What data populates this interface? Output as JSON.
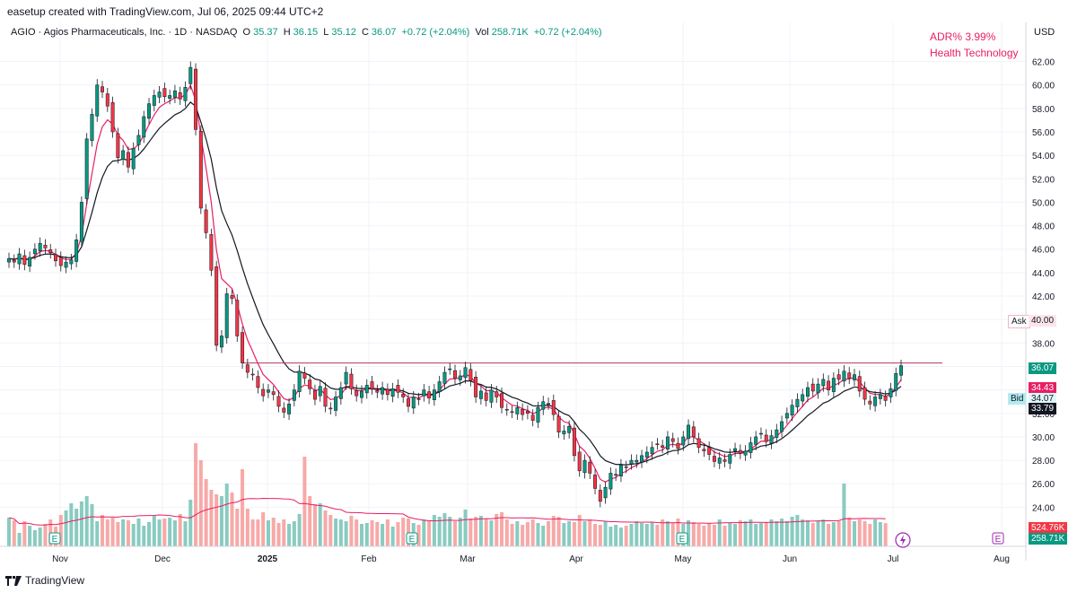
{
  "header": {
    "caption": "easetup created with TradingView.com, Jul 06, 2025 09:44 UTC+2"
  },
  "legend": {
    "symbol": "AGIO · Agios Pharmaceuticals, Inc. · 1D · NASDAQ",
    "o_label": "O",
    "o": "35.37",
    "h_label": "H",
    "h": "36.15",
    "l_label": "L",
    "l": "35.12",
    "c_label": "C",
    "c": "36.07",
    "change": "+0.72 (+2.04%)",
    "vol_label": "Vol",
    "vol": "258.71K",
    "vol_change": "+0.72 (+2.04%)"
  },
  "overlay": {
    "adr": "ADR%  3.99%",
    "sector": "Health Technology",
    "currency": "USD"
  },
  "tags": {
    "ask_label": "Ask",
    "ask": "40.00",
    "last": "36.07",
    "ma_fast": "34.43",
    "bid_label": "Bid",
    "bid": "34.07",
    "ma_slow": "33.79",
    "vol_ma": "524.76K",
    "vol_last": "258.71K"
  },
  "footer": {
    "brand": "TradingView"
  },
  "colors": {
    "up": "#089981",
    "down": "#f23645",
    "ma_fast": "#e91e63",
    "ma_slow": "#131722",
    "resistance": "#b0385a"
  },
  "chart_data": {
    "type": "candlestick",
    "x_ticks": [
      "Nov",
      "Dec",
      "2025",
      "Feb",
      "Mar",
      "Apr",
      "May",
      "Jun",
      "Jul",
      "Aug"
    ],
    "y_ticks": [
      24,
      26,
      28,
      30,
      32,
      34,
      36,
      38,
      40,
      42,
      44,
      46,
      48,
      50,
      52,
      54,
      56,
      58,
      60,
      62
    ],
    "ylim": [
      22.5,
      63.8
    ],
    "resistance_level": 36.3,
    "earnings_markers": [
      "Nov",
      "Feb",
      "May",
      "Aug"
    ],
    "closes": [
      45.2,
      44.9,
      45.6,
      44.7,
      45.3,
      46.0,
      46.5,
      46.1,
      45.7,
      45.0,
      44.6,
      44.9,
      45.1,
      46.8,
      50.0,
      55.4,
      57.5,
      60.0,
      59.4,
      58.2,
      56.0,
      53.8,
      54.4,
      53.0,
      54.6,
      55.7,
      57.3,
      58.4,
      59.1,
      59.4,
      59.0,
      59.1,
      59.5,
      58.8,
      59.8,
      61.5,
      56.2,
      49.5,
      47.4,
      44.2,
      37.8,
      38.6,
      42.2,
      41.8,
      38.6,
      36.3,
      35.5,
      35.3,
      34.2,
      33.5,
      34.0,
      33.6,
      32.6,
      32.1,
      32.8,
      34.0,
      35.6,
      35.0,
      34.1,
      33.2,
      34.3,
      32.6,
      32.4,
      33.4,
      34.2,
      35.5,
      34.1,
      33.5,
      33.9,
      34.4,
      34.1,
      33.8,
      34.2,
      33.6,
      34.1,
      33.8,
      33.4,
      32.6,
      33.4,
      33.2,
      34.0,
      33.3,
      34.0,
      34.7,
      35.5,
      35.8,
      35.0,
      35.2,
      35.9,
      34.8,
      33.4,
      33.9,
      33.1,
      34.0,
      33.4,
      32.5,
      32.3,
      32.1,
      32.5,
      31.9,
      32.0,
      31.4,
      32.5,
      33.0,
      32.8,
      31.9,
      30.4,
      30.5,
      30.9,
      28.4,
      27.1,
      28.0,
      26.9,
      25.6,
      24.5,
      25.7,
      26.9,
      26.8,
      27.6,
      27.4,
      28.0,
      28.0,
      28.4,
      28.7,
      29.1,
      29.4,
      29.1,
      30.0,
      29.6,
      29.0,
      30.0,
      31.0,
      30.0,
      29.1,
      28.8,
      28.5,
      27.9,
      28.2,
      27.9,
      28.5,
      29.0,
      28.6,
      28.8,
      29.5,
      30.0,
      30.3,
      29.6,
      30.1,
      30.6,
      31.3,
      32.0,
      32.7,
      33.2,
      33.6,
      34.2,
      33.9,
      34.5,
      34.9,
      34.0,
      35.0,
      34.9,
      35.6,
      35.0,
      35.3,
      33.9,
      33.2,
      32.8,
      33.4,
      33.6,
      33.1,
      34.1,
      35.4,
      36.07
    ],
    "volumes_k": [
      320,
      290,
      150,
      280,
      230,
      180,
      210,
      250,
      300,
      220,
      350,
      400,
      480,
      420,
      500,
      560,
      470,
      280,
      350,
      300,
      320,
      270,
      300,
      290,
      250,
      310,
      230,
      270,
      340,
      300,
      310,
      320,
      290,
      360,
      280,
      520,
      1150,
      960,
      750,
      630,
      580,
      560,
      700,
      600,
      420,
      860,
      420,
      300,
      300,
      380,
      290,
      320,
      260,
      300,
      250,
      280,
      360,
      1000,
      560,
      470,
      480,
      400,
      350,
      310,
      300,
      280,
      340,
      300,
      250,
      260,
      290,
      270,
      250,
      300,
      220,
      270,
      320,
      310,
      260,
      240,
      300,
      280,
      350,
      330,
      370,
      330,
      280,
      320,
      410,
      310,
      330,
      340,
      300,
      290,
      360,
      380,
      300,
      250,
      280,
      240,
      270,
      300,
      260,
      230,
      280,
      340,
      330,
      260,
      280,
      270,
      350,
      280,
      300,
      250,
      240,
      280,
      220,
      240,
      210,
      230,
      250,
      280,
      260,
      250,
      270,
      240,
      300,
      280,
      260,
      310,
      250,
      290,
      270,
      250,
      230,
      260,
      240,
      300,
      230,
      260,
      250,
      290,
      280,
      300,
      250,
      260,
      270,
      300,
      280,
      310,
      280,
      330,
      350,
      300,
      290,
      260,
      280,
      300,
      250,
      270,
      280,
      700,
      320,
      280,
      300,
      280,
      250,
      300,
      270,
      258.71
    ]
  }
}
